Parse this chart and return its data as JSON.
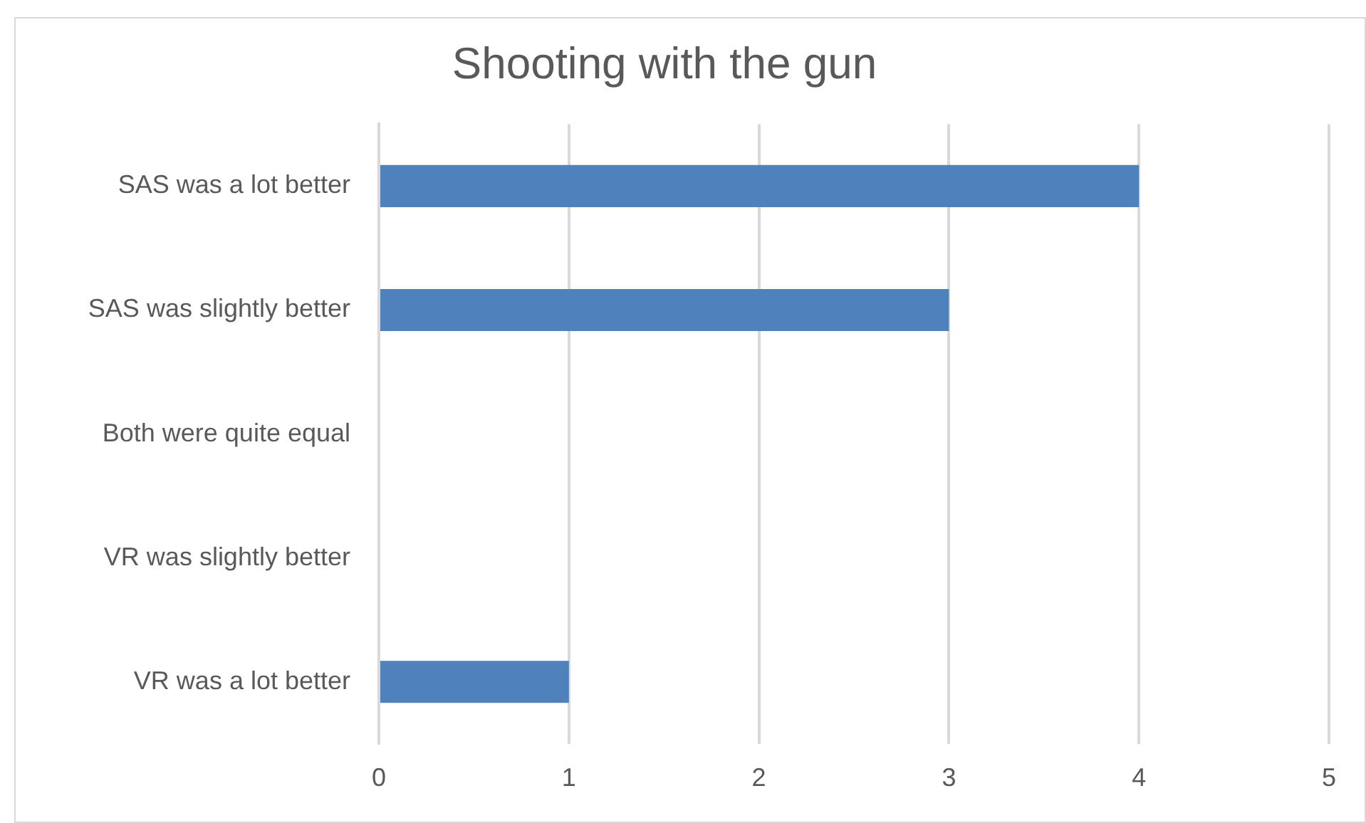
{
  "chart_data": {
    "type": "bar",
    "orientation": "horizontal",
    "title": "Shooting with the gun",
    "categories": [
      "SAS was a lot better",
      "SAS was slightly better",
      "Both were quite equal",
      "VR was slightly better",
      "VR was a lot better"
    ],
    "values": [
      4,
      3,
      0,
      0,
      1
    ],
    "color": "#4f81bd",
    "xlim": [
      0,
      5
    ],
    "xticks": [
      0,
      1,
      2,
      3,
      4,
      5
    ],
    "grid": "x"
  }
}
